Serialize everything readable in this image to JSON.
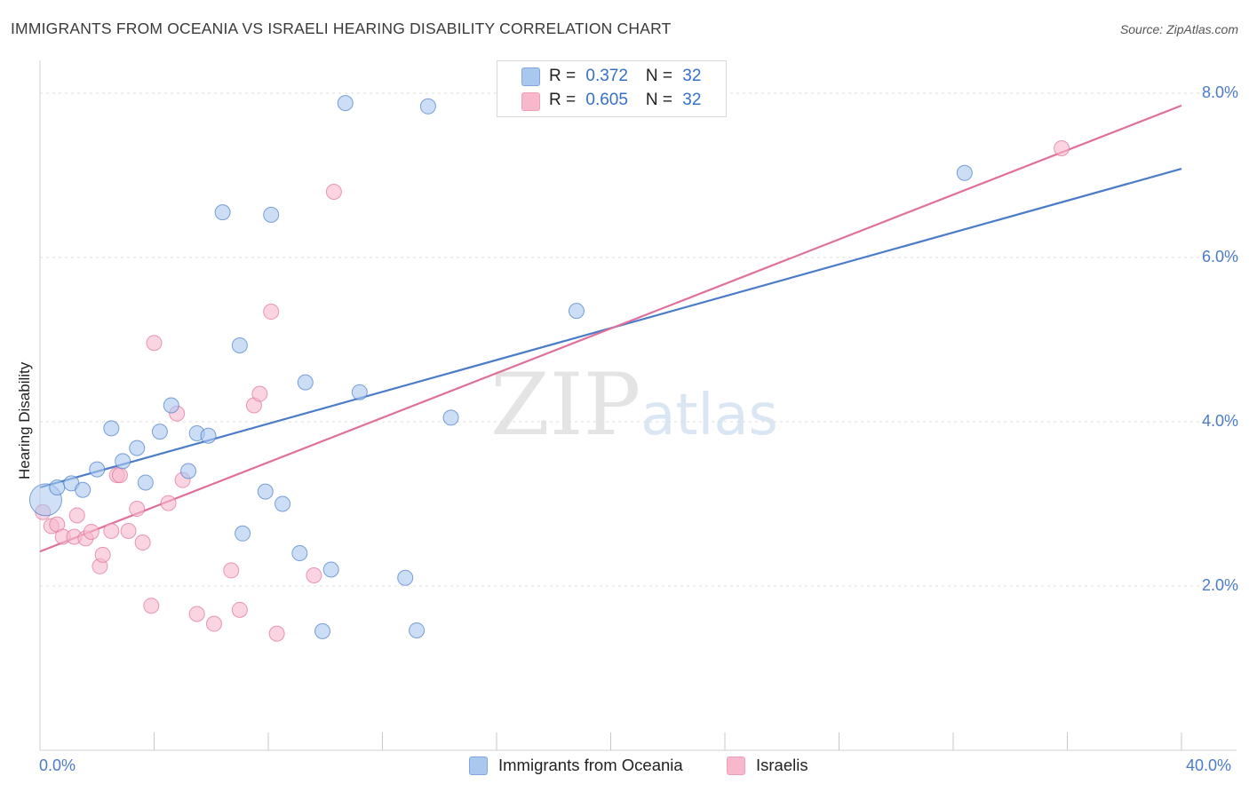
{
  "header": {
    "title": "IMMIGRANTS FROM OCEANIA VS ISRAELI HEARING DISABILITY CORRELATION CHART",
    "source": "Source: ZipAtlas.com"
  },
  "legend": {
    "rows": [
      {
        "r_label": "R = ",
        "r_value": "0.372",
        "n_label": "N = ",
        "n_value": "32",
        "color": "#a9c8f0"
      },
      {
        "r_label": "R = ",
        "r_value": "0.605",
        "n_label": "N = ",
        "n_value": "32",
        "color": "#f7b8cb"
      }
    ]
  },
  "watermark": {
    "zip": "ZIP",
    "atlas": "atlas"
  },
  "bottom_legend": [
    {
      "label": "Immigrants from Oceania",
      "color": "#a9c8f0"
    },
    {
      "label": "Israelis",
      "color": "#f7b8cb"
    }
  ],
  "chart_data": {
    "type": "scatter",
    "title": "IMMIGRANTS FROM OCEANIA VS ISRAELI HEARING DISABILITY CORRELATION CHART",
    "xlabel": "",
    "ylabel": "Hearing Disability",
    "xlim": [
      0,
      40
    ],
    "ylim": [
      0,
      8.4
    ],
    "x_tick_labels": [
      "0.0%",
      "40.0%"
    ],
    "y_ticks": [
      2,
      4,
      6,
      8
    ],
    "y_tick_labels": [
      "2.0%",
      "4.0%",
      "6.0%",
      "8.0%"
    ],
    "grid": true,
    "series": [
      {
        "name": "Immigrants from Oceania",
        "color": "#4a7cc8",
        "fill": "#a9c8f0",
        "trend": {
          "x": [
            0,
            40
          ],
          "y": [
            3.2,
            7.08
          ]
        },
        "points": [
          [
            0.2,
            3.05
          ],
          [
            0.6,
            3.2
          ],
          [
            1.1,
            3.25
          ],
          [
            1.5,
            3.17
          ],
          [
            2.0,
            3.42
          ],
          [
            2.5,
            3.92
          ],
          [
            2.9,
            3.52
          ],
          [
            3.4,
            3.68
          ],
          [
            3.7,
            3.26
          ],
          [
            4.2,
            3.88
          ],
          [
            4.6,
            4.2
          ],
          [
            5.2,
            3.4
          ],
          [
            5.5,
            3.86
          ],
          [
            5.9,
            3.83
          ],
          [
            6.4,
            6.55
          ],
          [
            7.0,
            4.93
          ],
          [
            7.1,
            2.64
          ],
          [
            7.9,
            3.15
          ],
          [
            8.1,
            6.52
          ],
          [
            8.5,
            3.0
          ],
          [
            9.1,
            2.4
          ],
          [
            9.3,
            4.48
          ],
          [
            9.9,
            1.45
          ],
          [
            10.2,
            2.2
          ],
          [
            10.7,
            7.88
          ],
          [
            11.2,
            4.36
          ],
          [
            12.8,
            2.1
          ],
          [
            13.2,
            1.46
          ],
          [
            13.6,
            7.84
          ],
          [
            14.4,
            4.05
          ],
          [
            18.8,
            5.35
          ],
          [
            32.4,
            7.03
          ]
        ]
      },
      {
        "name": "Israelis",
        "color": "#e0709a",
        "fill": "#f7b8cb",
        "trend": {
          "x": [
            0,
            40
          ],
          "y": [
            2.42,
            7.85
          ]
        },
        "points": [
          [
            0.1,
            2.9
          ],
          [
            0.4,
            2.73
          ],
          [
            0.6,
            2.75
          ],
          [
            0.8,
            2.6
          ],
          [
            1.2,
            2.6
          ],
          [
            1.3,
            2.86
          ],
          [
            1.6,
            2.58
          ],
          [
            1.8,
            2.66
          ],
          [
            2.1,
            2.24
          ],
          [
            2.2,
            2.38
          ],
          [
            2.5,
            2.67
          ],
          [
            2.7,
            3.35
          ],
          [
            2.8,
            3.35
          ],
          [
            3.1,
            2.67
          ],
          [
            3.4,
            2.94
          ],
          [
            3.6,
            2.53
          ],
          [
            3.9,
            1.76
          ],
          [
            4.0,
            4.96
          ],
          [
            4.5,
            3.01
          ],
          [
            4.8,
            4.1
          ],
          [
            5.0,
            3.29
          ],
          [
            5.5,
            1.66
          ],
          [
            6.1,
            1.54
          ],
          [
            6.7,
            2.19
          ],
          [
            7.0,
            1.71
          ],
          [
            7.5,
            4.2
          ],
          [
            7.7,
            4.34
          ],
          [
            8.1,
            5.34
          ],
          [
            8.3,
            1.42
          ],
          [
            9.6,
            2.13
          ],
          [
            10.3,
            6.8
          ],
          [
            35.8,
            7.33
          ]
        ]
      }
    ]
  }
}
